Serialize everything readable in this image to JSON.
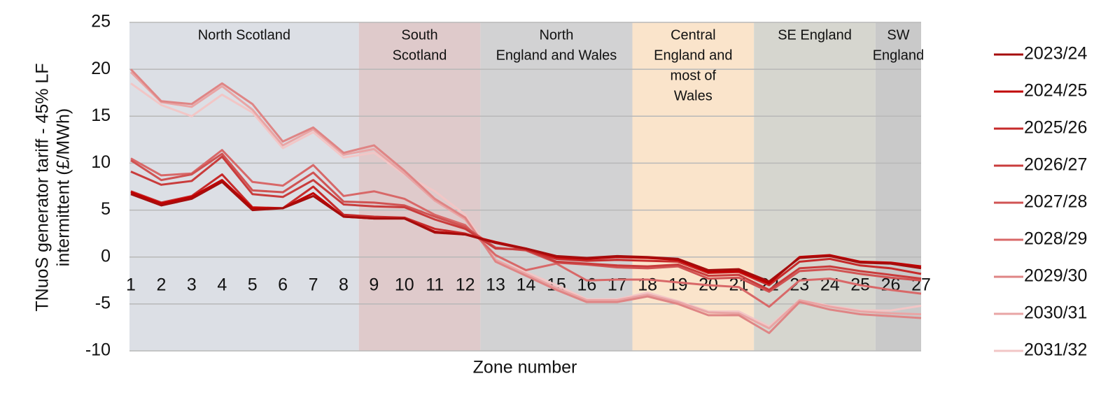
{
  "chart_data": {
    "type": "line",
    "ylabel": [
      "TNuoS generator tariff - 45% LF",
      "intermittent (£/MWh)"
    ],
    "xlabel": "Zone number",
    "x": [
      1,
      2,
      3,
      4,
      5,
      6,
      7,
      8,
      9,
      10,
      11,
      12,
      13,
      14,
      15,
      16,
      17,
      18,
      19,
      20,
      21,
      22,
      23,
      24,
      25,
      26,
      27
    ],
    "xlim": [
      1,
      27
    ],
    "ylim": [
      -10,
      25
    ],
    "yticks": [
      -10,
      -5,
      0,
      5,
      10,
      15,
      20,
      25
    ],
    "grid": true,
    "regions": [
      {
        "label": [
          "North Scotland"
        ],
        "from": 0.5,
        "to": 8.5,
        "color": "#dcdfe5"
      },
      {
        "label": [
          "South",
          "Scotland"
        ],
        "from": 8.5,
        "to": 12.5,
        "color": "#dfcacb"
      },
      {
        "label": [
          "North",
          "England and Wales"
        ],
        "from": 12.5,
        "to": 17.5,
        "color": "#d2d2d3"
      },
      {
        "label": [
          "Central",
          "England and",
          "most of",
          "Wales"
        ],
        "from": 17.5,
        "to": 21.5,
        "color": "#fae4cb"
      },
      {
        "label": [
          "SE England"
        ],
        "from": 21.5,
        "to": 25.5,
        "color": "#d6d6cf"
      },
      {
        "label": [
          "SW",
          "England"
        ],
        "from": 25.5,
        "to": 27.5,
        "color": "#c9c9c9"
      }
    ],
    "series": [
      {
        "name": "2023/24",
        "color": "#a50d0d",
        "values": [
          6.7,
          5.5,
          6.2,
          8,
          5,
          5.2,
          6.5,
          4.3,
          4.1,
          4.1,
          2.6,
          2.4,
          1.5,
          0.9,
          0.1,
          -0.1,
          0.1,
          0,
          -0.2,
          -1.4,
          -1.3,
          -2.6,
          -0.1,
          0.1,
          -0.6,
          -0.7,
          -1.2
        ]
      },
      {
        "name": "2024/25",
        "color": "#c00000",
        "values": [
          6.9,
          5.7,
          6.4,
          8.2,
          5.2,
          5.2,
          6.8,
          4.3,
          4.1,
          4.1,
          2.7,
          2.4,
          1.6,
          0.9,
          0,
          -0.2,
          0,
          -0.1,
          -0.3,
          -1.6,
          -1.5,
          -2.8,
          0,
          0.2,
          -0.5,
          -0.6,
          -1
        ]
      },
      {
        "name": "2025/26",
        "color": "#c62a2a",
        "values": [
          7,
          5.8,
          6.5,
          8.8,
          5.3,
          5.2,
          7.5,
          4.5,
          4.3,
          4.2,
          3,
          2.5,
          1.5,
          0.8,
          -0.2,
          -0.4,
          -0.3,
          -0.4,
          -0.5,
          -1.7,
          -1.6,
          -3,
          -0.5,
          -0.2,
          -0.9,
          -1.2,
          -1.8
        ]
      },
      {
        "name": "2026/27",
        "color": "#c93c3c",
        "values": [
          9.1,
          7.7,
          8.1,
          10.7,
          6.7,
          6.4,
          8.2,
          5.6,
          5.4,
          5.3,
          4,
          3,
          0.9,
          0.8,
          -0.5,
          -0.7,
          -0.9,
          -1,
          -0.8,
          -2,
          -1.9,
          -3.5,
          -1.2,
          -1,
          -1.5,
          -1.9,
          -2.3
        ]
      },
      {
        "name": "2027/28",
        "color": "#d05353",
        "values": [
          10.3,
          8.2,
          8.8,
          11,
          7.1,
          6.9,
          9,
          5.9,
          5.8,
          5.5,
          4.3,
          3.2,
          1,
          0.7,
          -0.6,
          -0.8,
          -1.1,
          -1.2,
          -1,
          -2.3,
          -2.2,
          -3.7,
          -1.5,
          -1.3,
          -1.8,
          -2.2,
          -2.5
        ]
      },
      {
        "name": "2028/29",
        "color": "#d86868",
        "values": [
          10.5,
          8.7,
          8.9,
          11.4,
          8,
          7.6,
          9.8,
          6.5,
          7,
          6.2,
          4.5,
          3.4,
          0.2,
          -1.4,
          -0.7,
          -2.5,
          -2.4,
          -2.4,
          -2.7,
          -3,
          -3.2,
          -5.3,
          -2.5,
          -2.3,
          -3,
          -3.5,
          -3.9
        ]
      },
      {
        "name": "2029/30",
        "color": "#df8585",
        "values": [
          20,
          16.6,
          16.3,
          18.5,
          16.3,
          12.3,
          13.8,
          11.1,
          11.9,
          9.2,
          6.2,
          4.2,
          -0.5,
          -2,
          -3.5,
          -4.8,
          -4.8,
          -4.2,
          -5,
          -6.2,
          -6.2,
          -8.1,
          -4.8,
          -5.6,
          -6.1,
          -6.3,
          -6.5
        ]
      },
      {
        "name": "2030/31",
        "color": "#e9a5a5",
        "values": [
          19.7,
          16.5,
          16,
          18.2,
          15.7,
          11.9,
          13.6,
          10.9,
          11.5,
          8.9,
          6,
          4,
          -0.3,
          -1.8,
          -3.3,
          -4.6,
          -4.6,
          -4,
          -4.8,
          -5.9,
          -6,
          -7.6,
          -4.6,
          -5.3,
          -5.8,
          -6,
          -6.1
        ]
      },
      {
        "name": "2031/32",
        "color": "#f2c6c6",
        "values": [
          18.5,
          16.2,
          15,
          17.3,
          15.4,
          11.6,
          13.3,
          10.6,
          11.1,
          8.8,
          7,
          4.5,
          -0.3,
          -1.6,
          -3,
          -4.5,
          -4.5,
          -3.8,
          -4.7,
          -5.8,
          -5.8,
          -7.4,
          -4.6,
          -5.2,
          -5.7,
          -5.7,
          -5.2
        ]
      }
    ]
  }
}
